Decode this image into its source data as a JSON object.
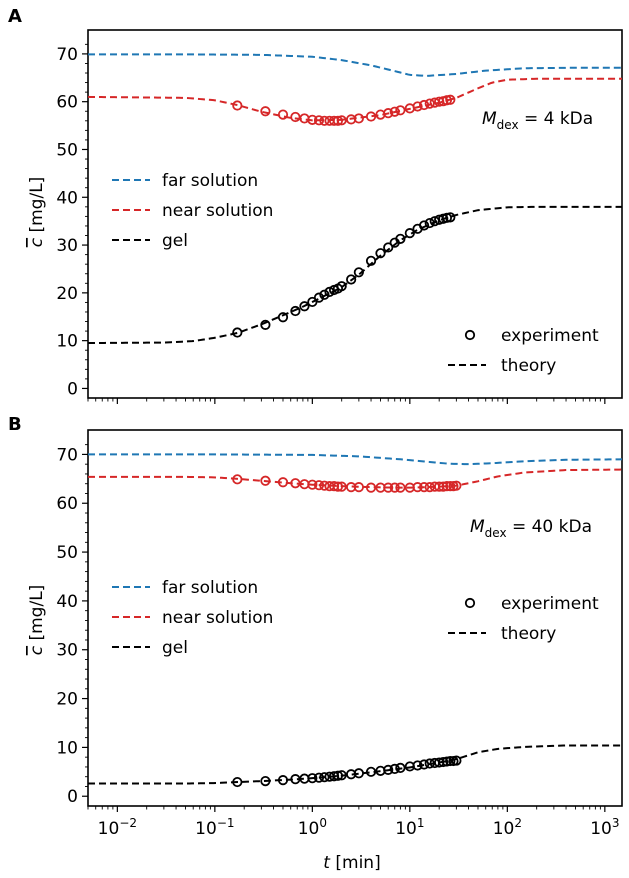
{
  "chart_data": [
    {
      "type": "line",
      "panel_label": "A",
      "annotation_main": "M",
      "annotation_sub": "dex",
      "annotation_rest": " = 4 kDa",
      "ylabel_symbol": "c",
      "ylabel_unit": " [mg/L]",
      "xlabel_symbol": "",
      "xlabel_unit": "",
      "xscale": "log",
      "xlim": [
        0.005,
        1500
      ],
      "ylim": [
        -2,
        75
      ],
      "yticks": [
        "0",
        "10",
        "20",
        "30",
        "40",
        "50",
        "60",
        "70"
      ],
      "ytick_values": [
        0,
        10,
        20,
        30,
        40,
        50,
        60,
        70
      ],
      "legend_series": [
        {
          "name": "far solution",
          "color": "#1f77b4"
        },
        {
          "name": "near solution",
          "color": "#d62728"
        },
        {
          "name": "gel",
          "color": "#000000"
        }
      ],
      "legend_type": [
        {
          "name": "experiment",
          "marker": "circle"
        },
        {
          "name": "theory",
          "marker": "dashed"
        }
      ],
      "series": [
        {
          "name": "far solution",
          "color": "#1f77b4",
          "style": "dashed",
          "x": [
            0.005,
            0.05,
            0.3,
            1,
            2,
            4,
            7,
            10,
            15,
            30,
            60,
            150,
            500,
            1500
          ],
          "y": [
            69.9,
            69.9,
            69.8,
            69.4,
            68.7,
            67.6,
            66.4,
            65.6,
            65.4,
            65.8,
            66.5,
            67.0,
            67.1,
            67.1
          ]
        },
        {
          "name": "near solution",
          "color": "#d62728",
          "style": "dashed",
          "x": [
            0.005,
            0.05,
            0.1,
            0.17,
            0.3,
            0.6,
            1,
            2,
            5,
            10,
            20,
            30,
            50,
            70,
            100,
            200,
            500,
            1500
          ],
          "y": [
            61.0,
            60.8,
            60.3,
            59.3,
            57.9,
            56.6,
            56.1,
            56.2,
            57.2,
            58.5,
            59.8,
            60.8,
            62.8,
            64.0,
            64.6,
            64.8,
            64.8,
            64.8
          ]
        },
        {
          "name": "gel",
          "color": "#000000",
          "style": "dashed",
          "x": [
            0.005,
            0.03,
            0.06,
            0.1,
            0.17,
            0.3,
            0.5,
            0.8,
            1.2,
            2,
            3,
            5,
            8,
            12,
            20,
            30,
            50,
            100,
            200,
            500,
            1500
          ],
          "y": [
            9.5,
            9.6,
            9.9,
            10.6,
            11.6,
            13.4,
            15.3,
            17.1,
            18.9,
            21.2,
            23.8,
            27.8,
            31.0,
            33.2,
            35.2,
            36.3,
            37.3,
            37.9,
            38.0,
            38.0,
            38.0
          ]
        }
      ],
      "experiment": [
        {
          "name": "near solution",
          "color": "#d62728",
          "x": [
            0.17,
            0.33,
            0.5,
            0.67,
            0.83,
            1.0,
            1.17,
            1.33,
            1.5,
            1.67,
            1.83,
            2.0,
            2.5,
            3,
            4,
            5,
            6,
            7,
            8,
            10,
            12,
            14,
            16,
            18,
            20,
            22,
            24,
            26
          ],
          "y": [
            59.2,
            58.0,
            57.3,
            56.8,
            56.5,
            56.2,
            56.1,
            56.0,
            56.0,
            56.0,
            56.0,
            56.1,
            56.3,
            56.5,
            56.9,
            57.3,
            57.6,
            57.9,
            58.2,
            58.6,
            59.0,
            59.3,
            59.6,
            59.8,
            60.0,
            60.1,
            60.3,
            60.4
          ]
        },
        {
          "name": "gel",
          "color": "#000000",
          "x": [
            0.17,
            0.33,
            0.5,
            0.67,
            0.83,
            1.0,
            1.17,
            1.33,
            1.5,
            1.67,
            1.83,
            2.0,
            2.5,
            3,
            4,
            5,
            6,
            7,
            8,
            10,
            12,
            14,
            16,
            18,
            20,
            22,
            24,
            26
          ],
          "y": [
            11.7,
            13.3,
            14.9,
            16.2,
            17.2,
            18.1,
            19.0,
            19.6,
            20.2,
            20.6,
            20.9,
            21.4,
            22.8,
            24.3,
            26.7,
            28.3,
            29.5,
            30.5,
            31.3,
            32.5,
            33.4,
            34.1,
            34.6,
            35.0,
            35.3,
            35.5,
            35.7,
            35.8
          ]
        }
      ]
    },
    {
      "type": "line",
      "panel_label": "B",
      "annotation_main": "M",
      "annotation_sub": "dex",
      "annotation_rest": " = 40 kDa",
      "ylabel_symbol": "c",
      "ylabel_unit": " [mg/L]",
      "xlabel_symbol": "t",
      "xlabel_unit": " [min]",
      "xscale": "log",
      "xlim": [
        0.005,
        1500
      ],
      "ylim": [
        -2,
        75
      ],
      "yticks": [
        "0",
        "10",
        "20",
        "30",
        "40",
        "50",
        "60",
        "70"
      ],
      "ytick_values": [
        0,
        10,
        20,
        30,
        40,
        50,
        60,
        70
      ],
      "xticks_base": [
        "10",
        "10",
        "10",
        "10",
        "10",
        "10"
      ],
      "xticks_exp": [
        "−2",
        "−1",
        "0",
        "1",
        "2",
        "3"
      ],
      "xtick_values": [
        0.01,
        0.1,
        1,
        10,
        100,
        1000
      ],
      "legend_series": [
        {
          "name": "far solution",
          "color": "#1f77b4"
        },
        {
          "name": "near solution",
          "color": "#d62728"
        },
        {
          "name": "gel",
          "color": "#000000"
        }
      ],
      "legend_type": [
        {
          "name": "experiment",
          "marker": "circle"
        },
        {
          "name": "theory",
          "marker": "dashed"
        }
      ],
      "series": [
        {
          "name": "far solution",
          "color": "#1f77b4",
          "style": "dashed",
          "x": [
            0.005,
            0.1,
            1,
            3,
            8,
            15,
            25,
            40,
            70,
            150,
            400,
            1500
          ],
          "y": [
            70.0,
            70.0,
            69.9,
            69.6,
            69.0,
            68.5,
            68.1,
            68.0,
            68.2,
            68.6,
            68.9,
            69.0
          ]
        },
        {
          "name": "near solution",
          "color": "#d62728",
          "style": "dashed",
          "x": [
            0.005,
            0.05,
            0.1,
            0.17,
            0.3,
            0.6,
            1,
            2,
            4,
            7,
            10,
            15,
            20,
            30,
            50,
            80,
            150,
            400,
            1500
          ],
          "y": [
            65.4,
            65.4,
            65.3,
            65.0,
            64.6,
            64.1,
            63.8,
            63.5,
            63.3,
            63.2,
            63.2,
            63.3,
            63.4,
            63.6,
            64.5,
            65.5,
            66.3,
            66.8,
            66.9
          ]
        },
        {
          "name": "gel",
          "color": "#000000",
          "style": "dashed",
          "x": [
            0.005,
            0.05,
            0.1,
            0.17,
            0.3,
            0.6,
            1,
            2,
            4,
            7,
            10,
            15,
            20,
            30,
            50,
            80,
            150,
            400,
            1500
          ],
          "y": [
            2.6,
            2.6,
            2.7,
            2.9,
            3.1,
            3.4,
            3.7,
            4.2,
            4.9,
            5.5,
            5.9,
            6.5,
            6.9,
            7.6,
            9.0,
            9.7,
            10.1,
            10.4,
            10.4
          ]
        }
      ],
      "experiment": [
        {
          "name": "near solution",
          "color": "#d62728",
          "x": [
            0.17,
            0.33,
            0.5,
            0.67,
            0.83,
            1.0,
            1.17,
            1.33,
            1.5,
            1.67,
            1.83,
            2.0,
            2.5,
            3,
            4,
            5,
            6,
            7,
            8,
            10,
            12,
            14,
            16,
            18,
            20,
            22,
            24,
            26,
            28,
            30
          ],
          "y": [
            64.9,
            64.6,
            64.3,
            64.1,
            63.9,
            63.8,
            63.7,
            63.6,
            63.5,
            63.5,
            63.4,
            63.4,
            63.3,
            63.3,
            63.2,
            63.2,
            63.2,
            63.2,
            63.2,
            63.2,
            63.3,
            63.3,
            63.3,
            63.4,
            63.4,
            63.4,
            63.5,
            63.5,
            63.5,
            63.6
          ]
        },
        {
          "name": "gel",
          "color": "#000000",
          "x": [
            0.17,
            0.33,
            0.5,
            0.67,
            0.83,
            1.0,
            1.17,
            1.33,
            1.5,
            1.67,
            1.83,
            2.0,
            2.5,
            3,
            4,
            5,
            6,
            7,
            8,
            10,
            12,
            14,
            16,
            18,
            20,
            22,
            24,
            26,
            28,
            30
          ],
          "y": [
            2.9,
            3.1,
            3.3,
            3.5,
            3.6,
            3.7,
            3.8,
            3.9,
            4.0,
            4.1,
            4.2,
            4.3,
            4.5,
            4.7,
            5.0,
            5.2,
            5.4,
            5.6,
            5.8,
            6.1,
            6.3,
            6.5,
            6.7,
            6.8,
            6.9,
            7.0,
            7.1,
            7.2,
            7.2,
            7.3
          ]
        }
      ]
    }
  ]
}
